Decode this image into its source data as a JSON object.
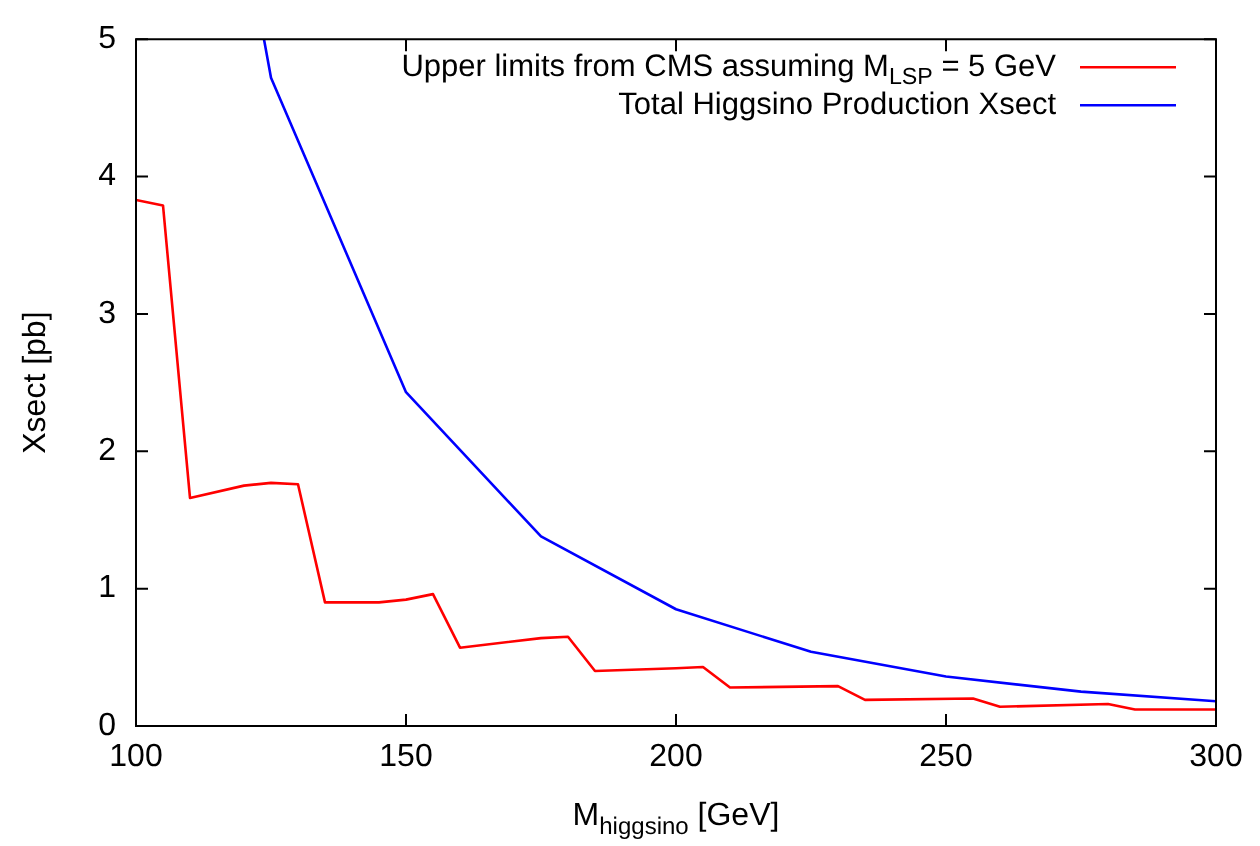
{
  "chart_data": {
    "type": "line",
    "xlabel": "M$_{higgsino}$ [GeV]",
    "ylabel": "Xsect [pb]",
    "xlim": [
      100,
      300
    ],
    "xticks": [
      100,
      150,
      200,
      250,
      300
    ],
    "ylim": [
      0,
      5
    ],
    "yticks": [
      0,
      1,
      2,
      3,
      4,
      5
    ],
    "grid": false,
    "legend": "top right",
    "marker": "none",
    "line_style": "solid",
    "series": [
      {
        "name": "Upper limits from CMS assuming M$_{LSP}$ = 5 GeV",
        "color": "#ff0000",
        "x": [
          100,
          105,
          110,
          120,
          125,
          130,
          135,
          145,
          150,
          155,
          160,
          175,
          180,
          185,
          200,
          205,
          210,
          230,
          235,
          255,
          260,
          280,
          285,
          300
        ],
        "values": [
          3.83,
          3.79,
          1.66,
          1.75,
          1.77,
          1.76,
          0.9,
          0.9,
          0.92,
          0.96,
          0.57,
          0.64,
          0.65,
          0.4,
          0.42,
          0.43,
          0.28,
          0.29,
          0.19,
          0.2,
          0.14,
          0.16,
          0.12,
          0.12
        ]
      },
      {
        "name": "Total Higgsino Production Xsect",
        "color": "#0000ff",
        "x": [
          123.7,
          125,
          150,
          175,
          200,
          225,
          250,
          275,
          300
        ],
        "values": [
          5,
          4.72,
          2.43,
          1.38,
          0.85,
          0.54,
          0.36,
          0.25,
          0.18
        ]
      }
    ]
  }
}
